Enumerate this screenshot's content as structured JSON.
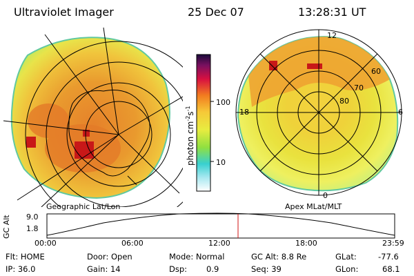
{
  "header": {
    "instrument": "Ultraviolet Imager",
    "date": "25 Dec 07",
    "time": "13:28:31 UT"
  },
  "left_map": {
    "caption": "Geographic Lat/Lon"
  },
  "right_map": {
    "caption": "Apex MLat/MLT",
    "mlt_labels": [
      "12",
      "18",
      "6",
      "0"
    ],
    "lat_labels": [
      "60",
      "70",
      "80"
    ]
  },
  "colorbar": {
    "label_main": "photon cm",
    "label_exp1": "-2",
    "label_s": "s",
    "label_exp2": "-1",
    "ticks": [
      "100",
      "10"
    ]
  },
  "altitude_plot": {
    "ylabel": "GC Alt",
    "y_ticks": [
      "9.0",
      "1.8"
    ],
    "x_ticks": [
      "00:00",
      "06:00",
      "12:00",
      "18:00",
      "23:59"
    ]
  },
  "info": {
    "filter": "Flt: HOME",
    "ip": "IP: 36.0",
    "door": "Door: Open",
    "gain": "Gain: 14",
    "mode": "Mode: Normal",
    "dsp_label": "Dsp:",
    "dsp_value": "0.9",
    "gc_alt": "GC Alt: 8.8 Re",
    "seq": "Seq: 39",
    "glat_label": "GLat:",
    "glat_value": "-77.6",
    "glon_label": "GLon:",
    "glon_value": "68.1"
  }
}
